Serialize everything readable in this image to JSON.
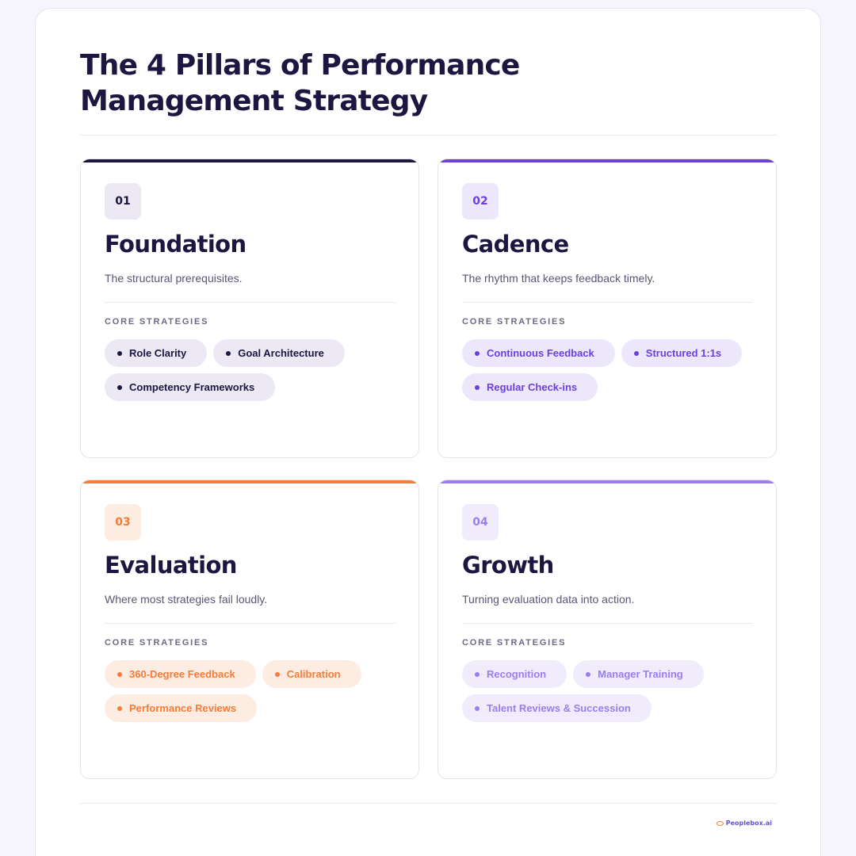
{
  "title": {
    "line1": "The 4 Pillars of Performance",
    "line2": "Management Strategy"
  },
  "core_label": "CORE STRATEGIES",
  "pillars": [
    {
      "number": "01",
      "name": "Foundation",
      "description": "The structural prerequisites.",
      "accent": "#1c1640",
      "badge_bg": "#ece8f4",
      "badge_fg": "#1c1640",
      "chip_bg": "#ece8f4",
      "chip_fg": "#1c1640",
      "strategies": [
        "Role Clarity",
        "Goal Architecture",
        "Competency Frameworks"
      ]
    },
    {
      "number": "02",
      "name": "Cadence",
      "description": "The rhythm that keeps feedback timely.",
      "accent": "#6c3fe0",
      "badge_bg": "#ede7fc",
      "badge_fg": "#6c3fe0",
      "chip_bg": "#ede7fc",
      "chip_fg": "#6c3fe0",
      "strategies": [
        "Continuous Feedback",
        "Structured 1:1s",
        "Regular Check-ins"
      ]
    },
    {
      "number": "03",
      "name": "Evaluation",
      "description": "Where most strategies fail loudly.",
      "accent": "#f57c3a",
      "badge_bg": "#fdece2",
      "badge_fg": "#f57c3a",
      "chip_bg": "#fdece2",
      "chip_fg": "#f57c3a",
      "strategies": [
        "360-Degree Feedback",
        "Calibration",
        "Performance Reviews"
      ]
    },
    {
      "number": "04",
      "name": "Growth",
      "description": "Turning evaluation data into action.",
      "accent": "#9b7df0",
      "badge_bg": "#f0ecfc",
      "badge_fg": "#9b7df0",
      "chip_bg": "#f0ecfc",
      "chip_fg": "#9b7df0",
      "strategies": [
        "Recognition",
        "Manager Training",
        "Talent Reviews & Succession"
      ]
    }
  ],
  "footer": {
    "brand": "Peoplebox.ai",
    "brand_icon": "eye-logo-icon"
  }
}
